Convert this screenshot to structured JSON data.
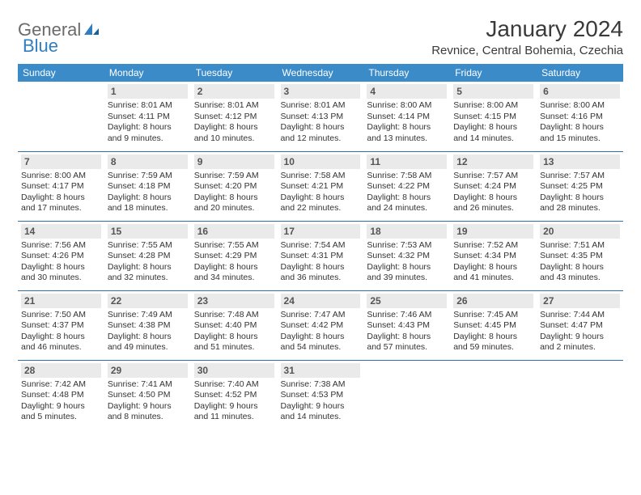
{
  "logo": {
    "part1": "General",
    "part2": "Blue"
  },
  "title": "January 2024",
  "location": "Revnice, Central Bohemia, Czechia",
  "headers": {
    "sun": "Sunday",
    "mon": "Monday",
    "tue": "Tuesday",
    "wed": "Wednesday",
    "thu": "Thursday",
    "fri": "Friday",
    "sat": "Saturday"
  },
  "colors": {
    "header_bg": "#3b8bc8",
    "header_text": "#ffffff",
    "row_border": "#2f6fa8",
    "daynum_bg": "#eaeaea",
    "logo_gray": "#6b6b6b",
    "logo_blue": "#2f7fc0"
  },
  "days": {
    "d1": {
      "n": "1",
      "r": "8:01 AM",
      "s": "4:11 PM",
      "d": "8 hours and 9 minutes."
    },
    "d2": {
      "n": "2",
      "r": "8:01 AM",
      "s": "4:12 PM",
      "d": "8 hours and 10 minutes."
    },
    "d3": {
      "n": "3",
      "r": "8:01 AM",
      "s": "4:13 PM",
      "d": "8 hours and 12 minutes."
    },
    "d4": {
      "n": "4",
      "r": "8:00 AM",
      "s": "4:14 PM",
      "d": "8 hours and 13 minutes."
    },
    "d5": {
      "n": "5",
      "r": "8:00 AM",
      "s": "4:15 PM",
      "d": "8 hours and 14 minutes."
    },
    "d6": {
      "n": "6",
      "r": "8:00 AM",
      "s": "4:16 PM",
      "d": "8 hours and 15 minutes."
    },
    "d7": {
      "n": "7",
      "r": "8:00 AM",
      "s": "4:17 PM",
      "d": "8 hours and 17 minutes."
    },
    "d8": {
      "n": "8",
      "r": "7:59 AM",
      "s": "4:18 PM",
      "d": "8 hours and 18 minutes."
    },
    "d9": {
      "n": "9",
      "r": "7:59 AM",
      "s": "4:20 PM",
      "d": "8 hours and 20 minutes."
    },
    "d10": {
      "n": "10",
      "r": "7:58 AM",
      "s": "4:21 PM",
      "d": "8 hours and 22 minutes."
    },
    "d11": {
      "n": "11",
      "r": "7:58 AM",
      "s": "4:22 PM",
      "d": "8 hours and 24 minutes."
    },
    "d12": {
      "n": "12",
      "r": "7:57 AM",
      "s": "4:24 PM",
      "d": "8 hours and 26 minutes."
    },
    "d13": {
      "n": "13",
      "r": "7:57 AM",
      "s": "4:25 PM",
      "d": "8 hours and 28 minutes."
    },
    "d14": {
      "n": "14",
      "r": "7:56 AM",
      "s": "4:26 PM",
      "d": "8 hours and 30 minutes."
    },
    "d15": {
      "n": "15",
      "r": "7:55 AM",
      "s": "4:28 PM",
      "d": "8 hours and 32 minutes."
    },
    "d16": {
      "n": "16",
      "r": "7:55 AM",
      "s": "4:29 PM",
      "d": "8 hours and 34 minutes."
    },
    "d17": {
      "n": "17",
      "r": "7:54 AM",
      "s": "4:31 PM",
      "d": "8 hours and 36 minutes."
    },
    "d18": {
      "n": "18",
      "r": "7:53 AM",
      "s": "4:32 PM",
      "d": "8 hours and 39 minutes."
    },
    "d19": {
      "n": "19",
      "r": "7:52 AM",
      "s": "4:34 PM",
      "d": "8 hours and 41 minutes."
    },
    "d20": {
      "n": "20",
      "r": "7:51 AM",
      "s": "4:35 PM",
      "d": "8 hours and 43 minutes."
    },
    "d21": {
      "n": "21",
      "r": "7:50 AM",
      "s": "4:37 PM",
      "d": "8 hours and 46 minutes."
    },
    "d22": {
      "n": "22",
      "r": "7:49 AM",
      "s": "4:38 PM",
      "d": "8 hours and 49 minutes."
    },
    "d23": {
      "n": "23",
      "r": "7:48 AM",
      "s": "4:40 PM",
      "d": "8 hours and 51 minutes."
    },
    "d24": {
      "n": "24",
      "r": "7:47 AM",
      "s": "4:42 PM",
      "d": "8 hours and 54 minutes."
    },
    "d25": {
      "n": "25",
      "r": "7:46 AM",
      "s": "4:43 PM",
      "d": "8 hours and 57 minutes."
    },
    "d26": {
      "n": "26",
      "r": "7:45 AM",
      "s": "4:45 PM",
      "d": "8 hours and 59 minutes."
    },
    "d27": {
      "n": "27",
      "r": "7:44 AM",
      "s": "4:47 PM",
      "d": "9 hours and 2 minutes."
    },
    "d28": {
      "n": "28",
      "r": "7:42 AM",
      "s": "4:48 PM",
      "d": "9 hours and 5 minutes."
    },
    "d29": {
      "n": "29",
      "r": "7:41 AM",
      "s": "4:50 PM",
      "d": "9 hours and 8 minutes."
    },
    "d30": {
      "n": "30",
      "r": "7:40 AM",
      "s": "4:52 PM",
      "d": "9 hours and 11 minutes."
    },
    "d31": {
      "n": "31",
      "r": "7:38 AM",
      "s": "4:53 PM",
      "d": "9 hours and 14 minutes."
    }
  },
  "labels": {
    "sunrise": "Sunrise: ",
    "sunset": "Sunset: ",
    "daylight": "Daylight: "
  }
}
